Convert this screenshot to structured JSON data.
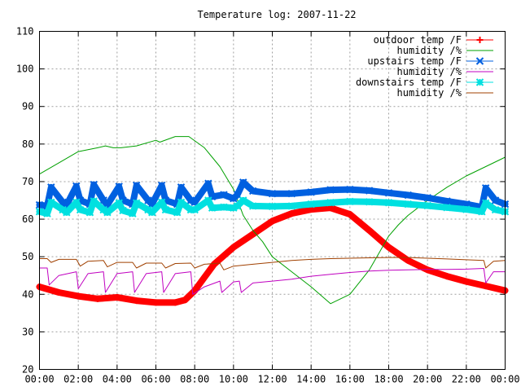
{
  "chart_data": {
    "type": "line",
    "title": "Temperature log: 2007-11-22",
    "xlabel": "",
    "ylabel": "",
    "x_unit": "hour of day",
    "xlim": [
      0,
      24
    ],
    "ylim": [
      20,
      110
    ],
    "x_ticks": [
      "00:00",
      "02:00",
      "04:00",
      "06:00",
      "08:00",
      "10:00",
      "12:00",
      "14:00",
      "16:00",
      "18:00",
      "20:00",
      "22:00",
      "00:00"
    ],
    "y_ticks": [
      "20",
      "30",
      "40",
      "50",
      "60",
      "70",
      "80",
      "90",
      "100",
      "110"
    ],
    "grid": true,
    "legend_position": "top-right",
    "series": [
      {
        "name": "outdoor temp /F",
        "color": "#ff0000",
        "marker": "plus",
        "thick": true,
        "x": [
          0,
          1,
          2,
          3,
          4,
          5,
          6,
          7,
          7.5,
          8,
          8.5,
          9,
          10,
          11,
          12,
          13,
          14,
          15,
          16,
          17,
          18,
          19,
          20,
          21,
          22,
          23,
          24
        ],
        "y": [
          42,
          40.5,
          39.5,
          38.8,
          39.2,
          38.3,
          37.8,
          37.8,
          38.5,
          41,
          44.5,
          48,
          52.5,
          56,
          59.5,
          61.5,
          62.6,
          63,
          61.3,
          57,
          52.5,
          49,
          46.5,
          44.8,
          43.4,
          42.2,
          41
        ]
      },
      {
        "name": "humidity /%",
        "color": "#00a000",
        "marker": "none",
        "thick": false,
        "x": [
          0,
          1,
          2,
          3,
          3.4,
          3.8,
          4.2,
          5,
          6,
          6.2,
          7,
          7.7,
          8.5,
          9.3,
          10,
          10.5,
          11,
          11.5,
          12,
          13,
          14,
          15,
          16,
          17,
          17.5,
          18,
          18.5,
          19,
          20,
          21,
          22,
          23,
          24
        ],
        "y": [
          72,
          75,
          78,
          79,
          79.5,
          79,
          79,
          79.5,
          81,
          80.5,
          82,
          82,
          79,
          74,
          68,
          61,
          57,
          54,
          50,
          46,
          42,
          37.5,
          40,
          46.5,
          51,
          55.5,
          58.5,
          61,
          65,
          68.5,
          71.5,
          74,
          76.5
        ]
      },
      {
        "name": "upstairs temp /F",
        "color": "#0060e0",
        "marker": "x",
        "thick": true,
        "x": [
          0,
          0.4,
          0.6,
          1.2,
          1.4,
          1.9,
          2.1,
          2.6,
          2.8,
          3.3,
          3.5,
          4.1,
          4.3,
          4.8,
          5.0,
          5.6,
          5.8,
          6.3,
          6.5,
          7.1,
          7.3,
          7.8,
          8.0,
          8.7,
          8.9,
          9.5,
          10.0,
          10.2,
          10.5,
          11,
          12,
          13,
          14,
          15,
          16,
          17,
          18,
          19,
          20,
          21,
          22,
          22.8,
          23.0,
          23.5,
          24
        ],
        "y": [
          63.8,
          63.5,
          68.5,
          64.5,
          63.8,
          68.8,
          65,
          64,
          69.2,
          65,
          63.8,
          68.7,
          65,
          64,
          69,
          65,
          64,
          69,
          65,
          64,
          68.5,
          65,
          64.5,
          69.5,
          66,
          66.5,
          65.5,
          66.5,
          69.8,
          67.5,
          66.8,
          66.8,
          67.2,
          67.8,
          67.9,
          67.6,
          67,
          66.4,
          65.7,
          64.8,
          64,
          63.2,
          68.3,
          65,
          64
        ]
      },
      {
        "name": "humidity /%",
        "color": "#c000c0",
        "marker": "none",
        "thick": false,
        "x": [
          0,
          0.4,
          0.5,
          1.0,
          1.9,
          2.0,
          2.5,
          3.3,
          3.4,
          4.0,
          4.8,
          4.9,
          5.5,
          6.3,
          6.4,
          7.0,
          7.8,
          7.9,
          8.5,
          9.3,
          9.4,
          10.0,
          10.3,
          10.4,
          11,
          12,
          13,
          14,
          15,
          16,
          17,
          18,
          19,
          20,
          21,
          22,
          22.9,
          23.0,
          23.4,
          24
        ],
        "y": [
          47,
          47,
          42.5,
          45,
          46,
          41.5,
          45.5,
          46,
          40.5,
          45.5,
          46,
          40.5,
          45.5,
          46,
          40.5,
          45.5,
          46,
          40,
          42,
          43.5,
          40.5,
          43.3,
          43.5,
          40.5,
          43,
          43.5,
          44,
          44.8,
          45.3,
          45.8,
          46.2,
          46.4,
          46.5,
          46.6,
          46.6,
          46.7,
          46.9,
          43,
          46,
          46
        ]
      },
      {
        "name": "downstairs temp /F",
        "color": "#00e0e0",
        "marker": "star",
        "thick": true,
        "x": [
          0,
          0.4,
          0.6,
          1.2,
          1.4,
          1.9,
          2.1,
          2.6,
          2.8,
          3.3,
          3.5,
          4.1,
          4.3,
          4.8,
          5.0,
          5.6,
          5.8,
          6.3,
          6.5,
          7.1,
          7.3,
          7.8,
          8.0,
          8.7,
          8.9,
          9.5,
          10.0,
          10.2,
          10.5,
          11,
          12,
          13,
          14,
          15,
          16,
          17,
          18,
          19,
          20,
          21,
          22,
          22.8,
          23.0,
          23.5,
          24
        ],
        "y": [
          62,
          61.5,
          64.5,
          62.5,
          61.8,
          64.5,
          62.5,
          61.8,
          64.8,
          62.5,
          61.8,
          64.3,
          62.3,
          61.5,
          64.3,
          62.5,
          61.8,
          64.5,
          62.5,
          61.8,
          64.5,
          62.5,
          62.5,
          65,
          63,
          63.2,
          63,
          63.5,
          65,
          63.5,
          63.4,
          63.5,
          64,
          64.4,
          64.7,
          64.6,
          64.4,
          64,
          63.6,
          63.1,
          62.6,
          62,
          64.3,
          62.5,
          62
        ]
      },
      {
        "name": "humidity /%",
        "color": "#a04000",
        "marker": "none",
        "thick": false,
        "x": [
          0,
          0.4,
          0.6,
          1.0,
          1.9,
          2.1,
          2.5,
          3.3,
          3.5,
          4.0,
          4.8,
          5.0,
          5.5,
          6.3,
          6.5,
          7.0,
          7.8,
          8.0,
          8.5,
          9.3,
          9.5,
          10,
          11,
          12,
          13,
          14,
          15,
          16,
          17,
          18,
          19,
          20,
          21,
          22,
          22.9,
          23.0,
          23.4,
          24
        ],
        "y": [
          49.5,
          49.5,
          48.5,
          49.3,
          49.3,
          47.5,
          48.8,
          49,
          47.3,
          48.5,
          48.5,
          47,
          48.3,
          48.3,
          47,
          48.2,
          48.3,
          47,
          48,
          48.3,
          46.5,
          47.5,
          48,
          48.5,
          49,
          49.3,
          49.5,
          49.6,
          49.7,
          49.8,
          49.8,
          49.6,
          49.4,
          49.2,
          49,
          47,
          48.8,
          49
        ]
      }
    ]
  }
}
